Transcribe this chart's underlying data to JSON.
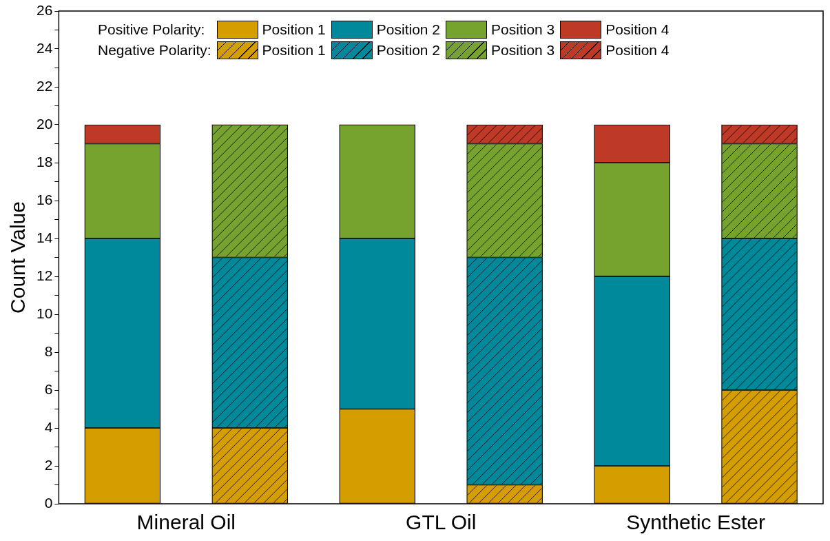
{
  "chart_data": {
    "type": "bar",
    "ylabel": "Count Value",
    "categories": [
      "Mineral Oil",
      null,
      "GTL Oil",
      null,
      "Synthetic Ester",
      null
    ],
    "stacked": true,
    "legend": "top",
    "annotations": [
      "Positive Polarity:",
      "Negative Polarity:"
    ],
    "ylim": [
      0,
      26
    ],
    "yticks": [
      0,
      {
        "value": 1,
        "label": null
      },
      2,
      {
        "value": 3,
        "label": null
      },
      4,
      {
        "value": 5,
        "label": null
      },
      6,
      {
        "value": 7,
        "label": null
      },
      8,
      {
        "value": 9,
        "label": null
      },
      10,
      {
        "value": 11,
        "label": null
      },
      12,
      {
        "value": 13,
        "label": null
      },
      14,
      {
        "value": 15,
        "label": null
      },
      16,
      {
        "value": 17,
        "label": null
      },
      18,
      {
        "value": 19,
        "label": null
      },
      20,
      {
        "value": 21,
        "label": null
      },
      22,
      {
        "value": 23,
        "label": null
      },
      24,
      {
        "value": 25,
        "label": null
      },
      26
    ],
    "series": [
      {
        "name": "Position 1",
        "color": "#d49e00",
        "values": [
          4,
          4,
          5,
          1,
          2,
          6
        ]
      },
      {
        "name": "Position 2",
        "color": "#00889b",
        "values": [
          10,
          9,
          9,
          12,
          10,
          8
        ]
      },
      {
        "name": "Position 3",
        "color": "#76a22e",
        "values": [
          5,
          7,
          6,
          6,
          6,
          5
        ]
      },
      {
        "name": "Position 4",
        "color": "#be3a26",
        "values": [
          1,
          0,
          0,
          1,
          2,
          1
        ]
      }
    ]
  }
}
